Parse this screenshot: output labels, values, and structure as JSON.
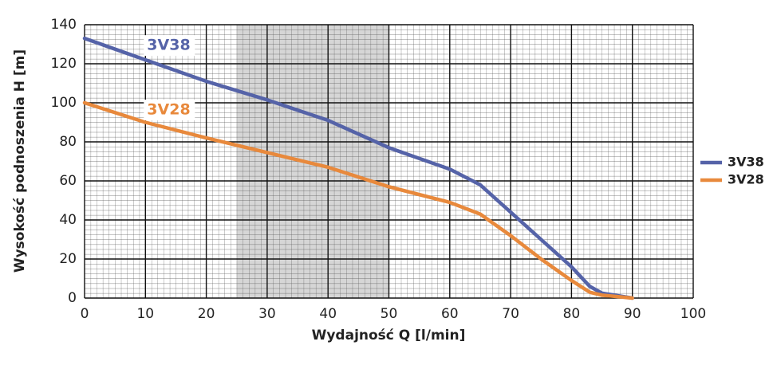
{
  "chart_data": {
    "type": "line",
    "x_label": "Wydajność Q [l/min]",
    "y_label": "Wysokość podnoszenia H [m]",
    "x": [
      0,
      10,
      20,
      30,
      40,
      50,
      60,
      65,
      70,
      75,
      80,
      83,
      85,
      90
    ],
    "series": [
      {
        "name": "3V38",
        "color": "#5563a8",
        "values": [
          133,
          122,
          111,
          101.5,
          91,
          77,
          66,
          58,
          44,
          30,
          16,
          6,
          2.5,
          0
        ]
      },
      {
        "name": "3V28",
        "color": "#e8893c",
        "values": [
          100,
          90,
          82,
          74.5,
          67,
          57,
          49,
          43,
          32,
          20,
          9,
          3,
          1.5,
          0
        ]
      }
    ],
    "xlim": [
      0,
      100
    ],
    "xticks": [
      0,
      10,
      20,
      30,
      40,
      50,
      60,
      70,
      80,
      90,
      100
    ],
    "ylim": [
      0,
      140
    ],
    "yticks": [
      0,
      20,
      40,
      60,
      80,
      100,
      120,
      140
    ],
    "shaded_x_range": [
      25,
      50
    ],
    "grid": true,
    "legend": "right"
  }
}
